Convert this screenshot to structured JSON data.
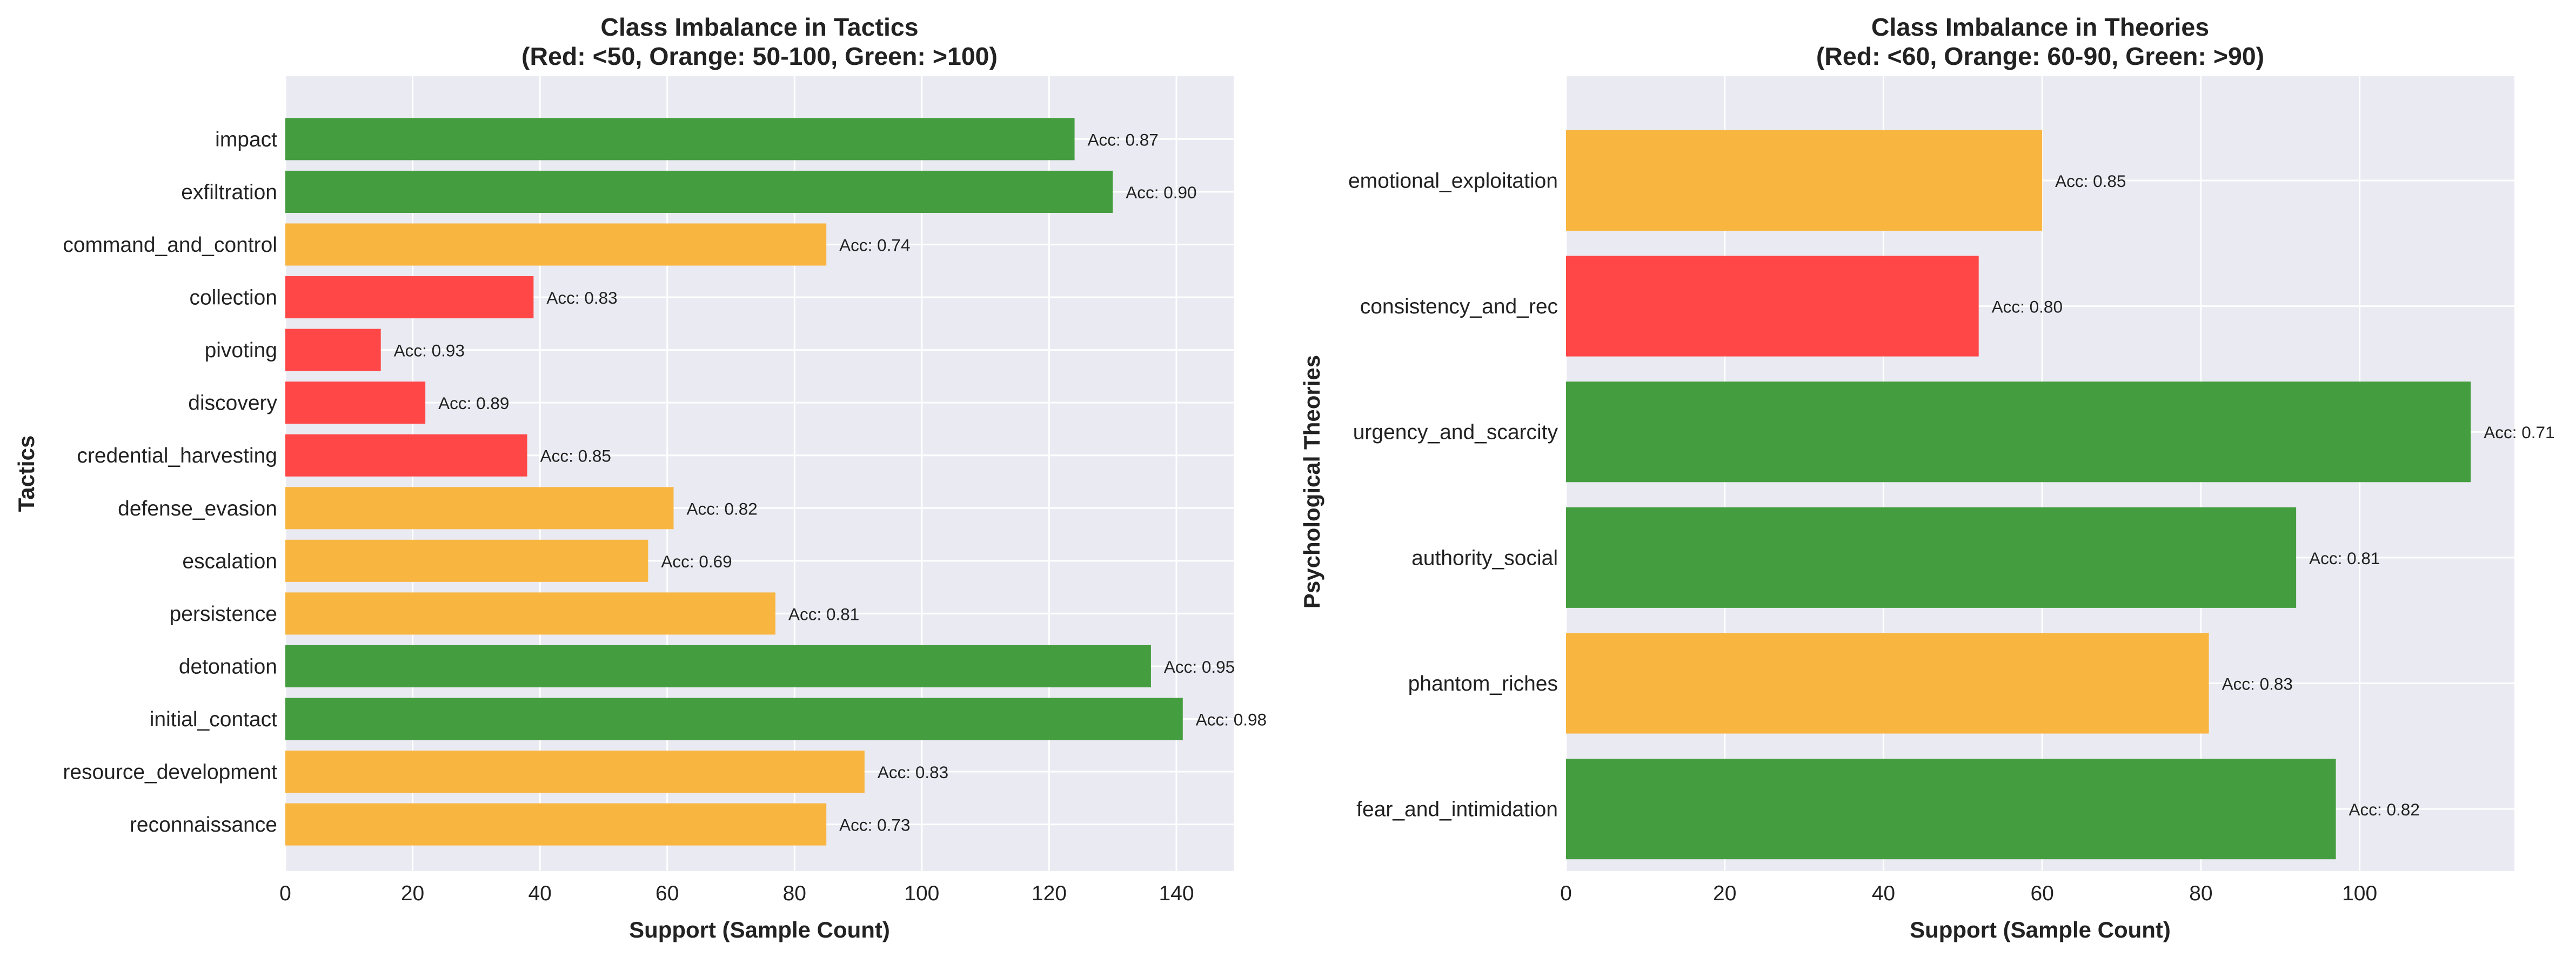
{
  "chart_data": [
    {
      "type": "bar",
      "orientation": "horizontal",
      "title": "Class Imbalance in Tactics",
      "subtitle": "(Red: <50, Orange: 50-100, Green: >100)",
      "xlabel": "Support (Sample Count)",
      "ylabel": "Tactics",
      "xlim": [
        0,
        149
      ],
      "xticks": [
        0,
        20,
        40,
        60,
        80,
        100,
        120,
        140
      ],
      "grid": true,
      "thresholds": [
        50,
        100
      ],
      "categories": [
        "impact",
        "exfiltration",
        "command_and_control",
        "collection",
        "pivoting",
        "discovery",
        "credential_harvesting",
        "defense_evasion",
        "escalation",
        "persistence",
        "detonation",
        "initial_contact",
        "resource_development",
        "reconnaissance"
      ],
      "values": [
        124,
        130,
        85,
        39,
        15,
        22,
        38,
        61,
        57,
        77,
        136,
        141,
        91,
        85
      ],
      "labels": [
        "Acc: 0.87",
        "Acc: 0.90",
        "Acc: 0.74",
        "Acc: 0.83",
        "Acc: 0.93",
        "Acc: 0.89",
        "Acc: 0.85",
        "Acc: 0.82",
        "Acc: 0.69",
        "Acc: 0.81",
        "Acc: 0.95",
        "Acc: 0.98",
        "Acc: 0.83",
        "Acc: 0.73"
      ]
    },
    {
      "type": "bar",
      "orientation": "horizontal",
      "title": "Class Imbalance in Theories",
      "subtitle": "(Red: <60, Orange: 60-90, Green: >90)",
      "xlabel": "Support (Sample Count)",
      "ylabel": "Psychological Theories",
      "xlim": [
        0,
        119.5
      ],
      "xticks": [
        0,
        20,
        40,
        60,
        80,
        100
      ],
      "grid": true,
      "thresholds": [
        60,
        90
      ],
      "categories": [
        "emotional_exploitation",
        "consistency_and_rec",
        "urgency_and_scarcity",
        "authority_social",
        "phantom_riches",
        "fear_and_intimidation"
      ],
      "values": [
        60,
        52,
        114,
        92,
        81,
        97
      ],
      "labels": [
        "Acc: 0.85",
        "Acc: 0.80",
        "Acc: 0.71",
        "Acc: 0.81",
        "Acc: 0.83",
        "Acc: 0.82"
      ]
    }
  ],
  "colors": {
    "red": "#ff4747",
    "orange": "#f8b641",
    "green": "#449d3e",
    "plot_bg": "#eaeaf2",
    "grid": "#ffffff"
  }
}
